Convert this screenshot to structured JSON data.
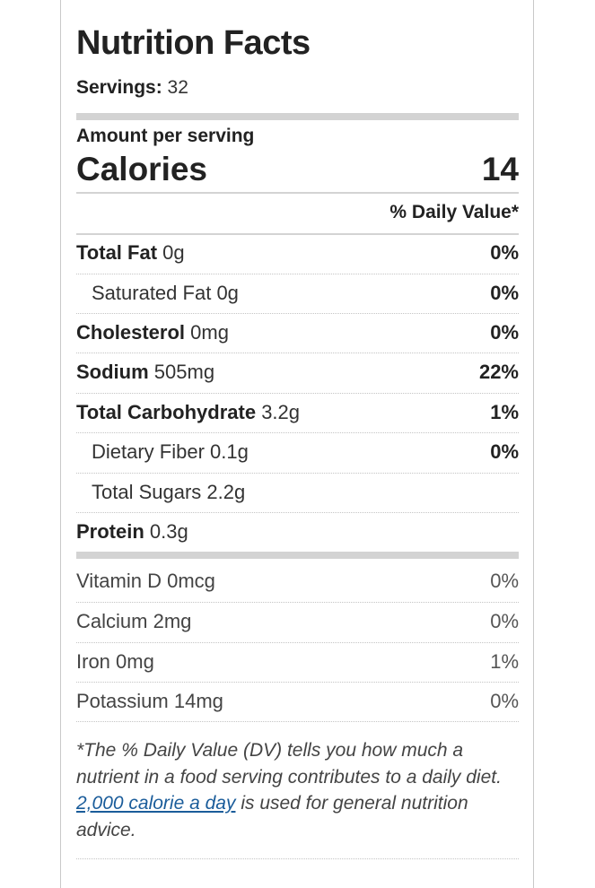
{
  "label": {
    "title": "Nutrition Facts",
    "servings_label": "Servings:",
    "servings_value": "32",
    "amount_per_serving": "Amount per serving",
    "calories_label": "Calories",
    "calories_value": "14",
    "daily_value_header": "% Daily Value*"
  },
  "nutrients": [
    {
      "name": "Total Fat",
      "amount": "0g",
      "dv": "0%"
    },
    {
      "name": "Saturated Fat",
      "amount": "0g",
      "dv": "0%"
    },
    {
      "name": "Cholesterol",
      "amount": "0mg",
      "dv": "0%"
    },
    {
      "name": "Sodium",
      "amount": "505mg",
      "dv": "22%"
    },
    {
      "name": "Total Carbohydrate",
      "amount": "3.2g",
      "dv": "1%"
    },
    {
      "name": "Dietary Fiber",
      "amount": "0.1g",
      "dv": "0%"
    },
    {
      "name": "Total Sugars",
      "amount": "2.2g",
      "dv": ""
    },
    {
      "name": "Protein",
      "amount": "0.3g",
      "dv": ""
    }
  ],
  "vitamins": [
    {
      "name": "Vitamin D",
      "amount": "0mcg",
      "dv": "0%"
    },
    {
      "name": "Calcium",
      "amount": "2mg",
      "dv": "0%"
    },
    {
      "name": "Iron",
      "amount": "0mg",
      "dv": "1%"
    },
    {
      "name": "Potassium",
      "amount": "14mg",
      "dv": "0%"
    }
  ],
  "footnote": {
    "intro": "*The % Daily Value (DV) tells you how much a nutrient in a food serving contributes to a daily diet.",
    "link_text": "2,000 calorie a day",
    "outro": "is used for general nutrition advice."
  },
  "colors": {
    "link": "#1a5c9a",
    "rule": "#d3d3d3"
  }
}
